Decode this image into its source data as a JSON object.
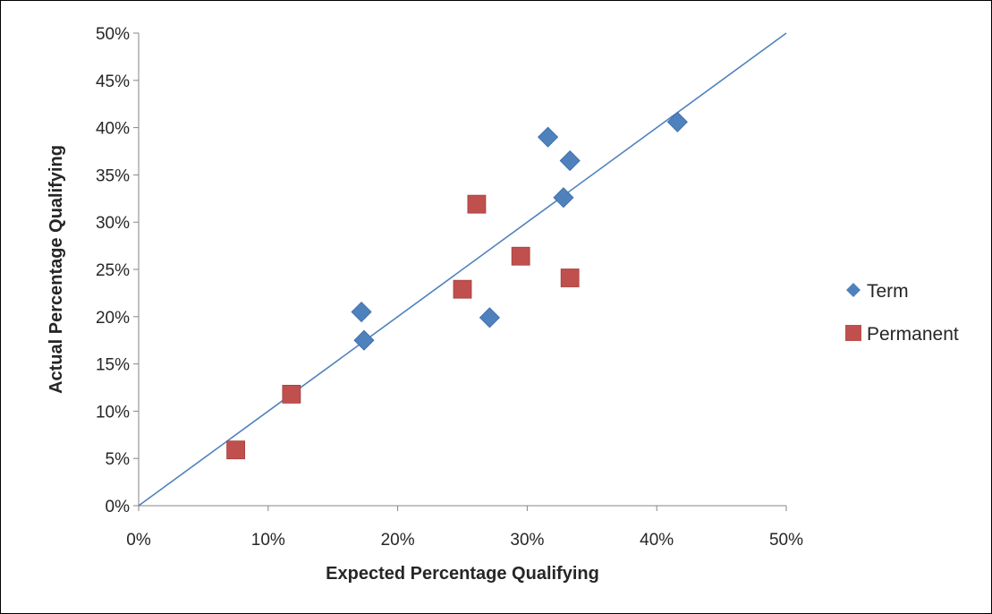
{
  "chart_data": {
    "type": "scatter",
    "xlabel": "Expected Percentage Qualifying",
    "ylabel": "Actual Percentage Qualifying",
    "xlim": [
      0,
      0.5
    ],
    "ylim": [
      0,
      0.5
    ],
    "x_ticks": [
      {
        "value": 0,
        "label": "0%"
      },
      {
        "value": 0.1,
        "label": "10%"
      },
      {
        "value": 0.2,
        "label": "20%"
      },
      {
        "value": 0.3,
        "label": "30%"
      },
      {
        "value": 0.4,
        "label": "40%"
      },
      {
        "value": 0.5,
        "label": "50%"
      }
    ],
    "y_ticks": [
      {
        "value": 0,
        "label": "0%"
      },
      {
        "value": 0.05,
        "label": "5%"
      },
      {
        "value": 0.1,
        "label": "10%"
      },
      {
        "value": 0.15,
        "label": "15%"
      },
      {
        "value": 0.2,
        "label": "20%"
      },
      {
        "value": 0.25,
        "label": "25%"
      },
      {
        "value": 0.3,
        "label": "30%"
      },
      {
        "value": 0.35,
        "label": "35%"
      },
      {
        "value": 0.4,
        "label": "40%"
      },
      {
        "value": 0.45,
        "label": "45%"
      },
      {
        "value": 0.5,
        "label": "50%"
      }
    ],
    "grid": false,
    "legend_position": "right",
    "reference_line": {
      "from": [
        0,
        0
      ],
      "to": [
        0.5,
        0.5
      ],
      "color": "#4F81BD"
    },
    "series": [
      {
        "name": "Term",
        "marker": "diamond",
        "color": "#4F81BD",
        "points": [
          {
            "x": 0.172,
            "y": 0.205
          },
          {
            "x": 0.174,
            "y": 0.175
          },
          {
            "x": 0.271,
            "y": 0.199
          },
          {
            "x": 0.316,
            "y": 0.39
          },
          {
            "x": 0.328,
            "y": 0.326
          },
          {
            "x": 0.333,
            "y": 0.365
          },
          {
            "x": 0.416,
            "y": 0.406
          }
        ]
      },
      {
        "name": "Permanent",
        "marker": "square",
        "color": "#C0504D",
        "points": [
          {
            "x": 0.075,
            "y": 0.059
          },
          {
            "x": 0.118,
            "y": 0.118
          },
          {
            "x": 0.25,
            "y": 0.229
          },
          {
            "x": 0.261,
            "y": 0.319
          },
          {
            "x": 0.295,
            "y": 0.264
          },
          {
            "x": 0.333,
            "y": 0.241
          }
        ]
      }
    ]
  }
}
